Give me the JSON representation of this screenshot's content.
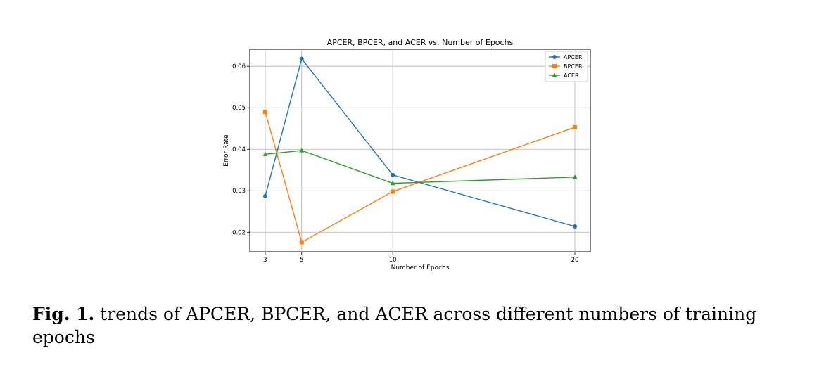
{
  "chart_data": {
    "type": "line",
    "title": "APCER, BPCER, and ACER vs. Number of Epochs",
    "xlabel": "Number of Epochs",
    "ylabel": "Error Rate",
    "x": [
      3,
      5,
      10,
      20
    ],
    "x_ticks": [
      "3",
      "5",
      "10",
      "20"
    ],
    "y_ticks": [
      "0.02",
      "0.03",
      "0.04",
      "0.05",
      "0.06"
    ],
    "y_tick_values": [
      0.02,
      0.03,
      0.04,
      0.05,
      0.06
    ],
    "xlim": [
      2.15,
      20.85
    ],
    "ylim": [
      0.0153,
      0.0641
    ],
    "grid": true,
    "legend_position": "top-right",
    "series": [
      {
        "name": "APCER",
        "values": [
          0.0287,
          0.0618,
          0.0338,
          0.0214
        ],
        "color": "#1f77b4",
        "marker": "circle"
      },
      {
        "name": "BPCER",
        "values": [
          0.049,
          0.0176,
          0.0298,
          0.0453
        ],
        "color": "#ff7f0e",
        "marker": "square"
      },
      {
        "name": "ACER",
        "values": [
          0.0388,
          0.0397,
          0.0318,
          0.0333
        ],
        "color": "#2ca02c",
        "marker": "triangle"
      }
    ]
  },
  "caption": {
    "label": "Fig. 1.",
    "text": " trends of APCER, BPCER, and ACER across different numbers of training epochs"
  }
}
